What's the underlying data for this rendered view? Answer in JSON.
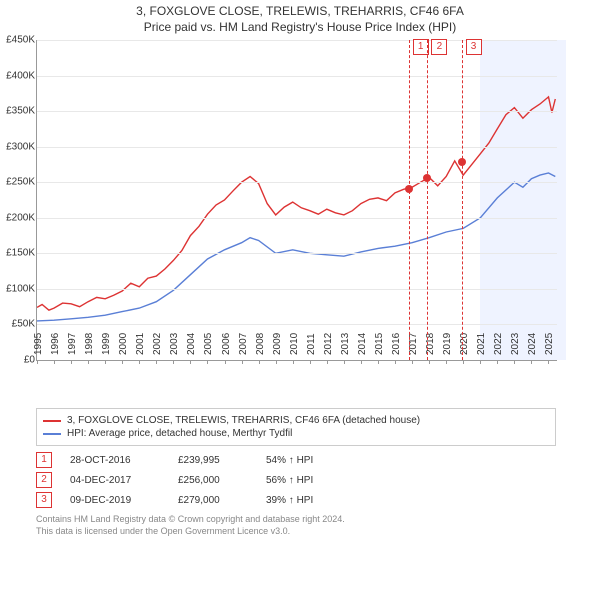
{
  "title": "3, FOXGLOVE CLOSE, TRELEWIS, TREHARRIS, CF46 6FA",
  "subtitle": "Price paid vs. HM Land Registry's House Price Index (HPI)",
  "chart": {
    "type": "line",
    "xlim": [
      1995,
      2025.5
    ],
    "ylim": [
      0,
      450000
    ],
    "ytick_step": 50000,
    "yticks_labels": [
      "£0",
      "£50K",
      "£100K",
      "£150K",
      "£200K",
      "£250K",
      "£300K",
      "£350K",
      "£400K",
      "£450K"
    ],
    "xticks": [
      1995,
      1996,
      1997,
      1998,
      1999,
      2000,
      2001,
      2002,
      2003,
      2004,
      2005,
      2006,
      2007,
      2008,
      2009,
      2010,
      2011,
      2012,
      2013,
      2014,
      2015,
      2016,
      2017,
      2018,
      2019,
      2020,
      2021,
      2022,
      2023,
      2024,
      2025
    ],
    "shaded_years": [
      2021,
      2022,
      2023,
      2024,
      2025
    ],
    "sale_markers": [
      {
        "num": "1",
        "year": 2016.8,
        "price": 239995
      },
      {
        "num": "2",
        "year": 2017.9,
        "price": 256000
      },
      {
        "num": "3",
        "year": 2019.9,
        "price": 279000
      }
    ],
    "colors": {
      "red": "#d33",
      "blue": "#5a7fd6",
      "grid": "#e8e8e8",
      "shade": "rgba(120,160,255,0.12)"
    },
    "line_width": 1.4,
    "red_series": [
      [
        1995,
        74000
      ],
      [
        1995.3,
        78000
      ],
      [
        1995.7,
        70000
      ],
      [
        1996,
        73000
      ],
      [
        1996.5,
        80000
      ],
      [
        1997,
        79000
      ],
      [
        1997.5,
        75000
      ],
      [
        1998,
        82000
      ],
      [
        1998.5,
        88000
      ],
      [
        1999,
        86000
      ],
      [
        1999.5,
        91000
      ],
      [
        2000,
        97000
      ],
      [
        2000.5,
        108000
      ],
      [
        2001,
        103000
      ],
      [
        2001.5,
        115000
      ],
      [
        2002,
        118000
      ],
      [
        2002.5,
        128000
      ],
      [
        2003,
        140000
      ],
      [
        2003.5,
        154000
      ],
      [
        2004,
        175000
      ],
      [
        2004.5,
        188000
      ],
      [
        2005,
        205000
      ],
      [
        2005.5,
        218000
      ],
      [
        2006,
        225000
      ],
      [
        2006.5,
        238000
      ],
      [
        2007,
        250000
      ],
      [
        2007.5,
        258000
      ],
      [
        2008,
        248000
      ],
      [
        2008.5,
        220000
      ],
      [
        2009,
        204000
      ],
      [
        2009.5,
        215000
      ],
      [
        2010,
        222000
      ],
      [
        2010.5,
        214000
      ],
      [
        2011,
        210000
      ],
      [
        2011.5,
        205000
      ],
      [
        2012,
        212000
      ],
      [
        2012.5,
        207000
      ],
      [
        2013,
        204000
      ],
      [
        2013.5,
        210000
      ],
      [
        2014,
        220000
      ],
      [
        2014.5,
        226000
      ],
      [
        2015,
        228000
      ],
      [
        2015.5,
        224000
      ],
      [
        2016,
        235000
      ],
      [
        2016.5,
        240000
      ],
      [
        2017,
        243000
      ],
      [
        2017.5,
        250000
      ],
      [
        2018,
        257000
      ],
      [
        2018.5,
        245000
      ],
      [
        2019,
        258000
      ],
      [
        2019.5,
        280000
      ],
      [
        2020,
        260000
      ],
      [
        2020.5,
        275000
      ],
      [
        2021,
        290000
      ],
      [
        2021.5,
        305000
      ],
      [
        2022,
        325000
      ],
      [
        2022.5,
        345000
      ],
      [
        2023,
        355000
      ],
      [
        2023.5,
        340000
      ],
      [
        2024,
        352000
      ],
      [
        2024.5,
        360000
      ],
      [
        2025,
        370000
      ],
      [
        2025.2,
        348000
      ],
      [
        2025.4,
        367000
      ]
    ],
    "blue_series": [
      [
        1995,
        55000
      ],
      [
        1996,
        56000
      ],
      [
        1997,
        58000
      ],
      [
        1998,
        60000
      ],
      [
        1999,
        63000
      ],
      [
        2000,
        68000
      ],
      [
        2001,
        73000
      ],
      [
        2002,
        82000
      ],
      [
        2003,
        98000
      ],
      [
        2004,
        120000
      ],
      [
        2005,
        142000
      ],
      [
        2006,
        155000
      ],
      [
        2007,
        165000
      ],
      [
        2007.5,
        172000
      ],
      [
        2008,
        168000
      ],
      [
        2009,
        150000
      ],
      [
        2010,
        155000
      ],
      [
        2011,
        150000
      ],
      [
        2012,
        148000
      ],
      [
        2013,
        146000
      ],
      [
        2014,
        152000
      ],
      [
        2015,
        157000
      ],
      [
        2016,
        160000
      ],
      [
        2017,
        165000
      ],
      [
        2018,
        172000
      ],
      [
        2019,
        180000
      ],
      [
        2020,
        185000
      ],
      [
        2021,
        200000
      ],
      [
        2022,
        228000
      ],
      [
        2023,
        250000
      ],
      [
        2023.5,
        243000
      ],
      [
        2024,
        255000
      ],
      [
        2024.5,
        260000
      ],
      [
        2025,
        263000
      ],
      [
        2025.4,
        258000
      ]
    ]
  },
  "legend": {
    "red": "3, FOXGLOVE CLOSE, TRELEWIS, TREHARRIS, CF46 6FA (detached house)",
    "blue": "HPI: Average price, detached house, Merthyr Tydfil"
  },
  "sales": [
    {
      "num": "1",
      "date": "28-OCT-2016",
      "price": "£239,995",
      "pct": "54% ↑ HPI"
    },
    {
      "num": "2",
      "date": "04-DEC-2017",
      "price": "£256,000",
      "pct": "56% ↑ HPI"
    },
    {
      "num": "3",
      "date": "09-DEC-2019",
      "price": "£279,000",
      "pct": "39% ↑ HPI"
    }
  ],
  "footer1": "Contains HM Land Registry data © Crown copyright and database right 2024.",
  "footer2": "This data is licensed under the Open Government Licence v3.0."
}
